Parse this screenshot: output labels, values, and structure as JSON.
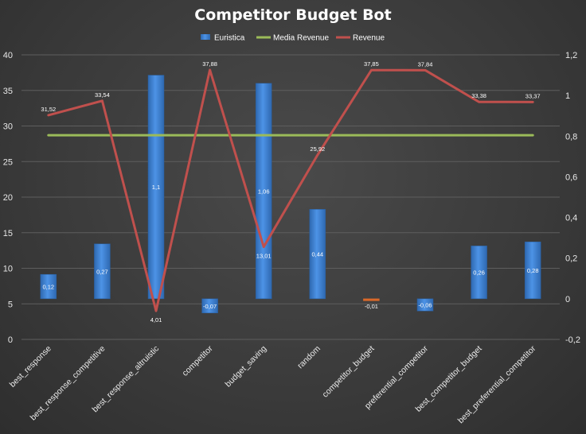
{
  "chart_data": {
    "type": "bar",
    "title": "Competitor Budget Bot",
    "categories": [
      "best_response",
      "best_response_competitive",
      "best_response_altruistic",
      "competitor",
      "budget_saving",
      "random",
      "competitor_budget",
      "preferential_competitor",
      "best_competitor_budget",
      "best_preferential_competitor"
    ],
    "legend": {
      "placement": "top",
      "entries": [
        "Euristica",
        "Media Revenue",
        "Revenue"
      ]
    },
    "y_left": {
      "range": [
        0,
        40
      ],
      "ticks": [
        "0",
        "5",
        "10",
        "15",
        "20",
        "25",
        "30",
        "35",
        "40"
      ]
    },
    "y_right": {
      "range": [
        -0.2,
        1.2
      ],
      "ticks": [
        "-0,2",
        "0",
        "0,2",
        "0,4",
        "0,6",
        "0,8",
        "1",
        "1,2"
      ]
    },
    "series": [
      {
        "name": "Euristica",
        "type": "bar",
        "axis": "right",
        "values": [
          0.12,
          0.27,
          1.1,
          -0.07,
          1.06,
          0.44,
          -0.01,
          -0.06,
          0.26,
          0.28
        ],
        "labels": [
          "0,12",
          "0,27",
          "1,1",
          "-0,07",
          "1,06",
          "0,44",
          "-0,01",
          "-0,06",
          "0,26",
          "0,28"
        ],
        "color": "#3f83d4"
      },
      {
        "name": "Media Revenue",
        "type": "line",
        "axis": "left",
        "values": [
          28.7,
          28.7,
          28.7,
          28.7,
          28.7,
          28.7,
          28.7,
          28.7,
          28.7,
          28.7
        ],
        "color": "#9bbb59"
      },
      {
        "name": "Revenue",
        "type": "line",
        "axis": "left",
        "values": [
          31.52,
          33.54,
          4.01,
          37.88,
          13.01,
          25.92,
          37.85,
          37.84,
          33.38,
          33.37
        ],
        "labels": [
          "31,52",
          "33,54",
          "4,01",
          "37,88",
          "13,01",
          "25,92",
          "37,85",
          "37,84",
          "33,38",
          "33,37"
        ],
        "color": "#c0504d"
      }
    ],
    "grid": true
  }
}
